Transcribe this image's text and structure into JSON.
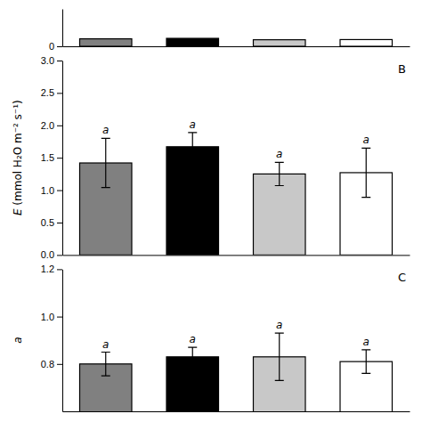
{
  "chart_data": [
    {
      "type": "bar",
      "categories": [
        null,
        null,
        null,
        null
      ],
      "values": [
        8.0,
        8.5,
        7.0,
        7.2
      ],
      "colors": [
        "#808080",
        "#000000",
        "#c8c8c8",
        "#ffffff"
      ],
      "ylim": [
        0,
        40
      ],
      "yticks": [
        0
      ],
      "tick_labels": "y"
    },
    {
      "type": "bar",
      "title": "B",
      "ylabel": "E (mmol H₂O m⁻² s⁻¹)",
      "categories": [
        null,
        null,
        null,
        null
      ],
      "values": [
        1.42,
        1.67,
        1.25,
        1.27
      ],
      "errors": [
        0.38,
        0.22,
        0.18,
        0.38
      ],
      "annotations": [
        "a",
        "a",
        "a",
        "a"
      ],
      "colors": [
        "#808080",
        "#000000",
        "#c8c8c8",
        "#ffffff"
      ],
      "ylim": [
        0.0,
        3.0
      ],
      "yticks": [
        {
          "value": 0.0,
          "label": "0.0"
        },
        0.5,
        {
          "value": 1.0,
          "label": "1.0"
        },
        1.5,
        {
          "value": 2.0,
          "label": "2.0"
        },
        2.5,
        {
          "value": 3.0,
          "label": "3.0"
        }
      ],
      "tick_labels": "y"
    },
    {
      "type": "bar",
      "title": "C",
      "ylabel": "a",
      "categories": [
        null,
        null,
        null,
        null
      ],
      "values": [
        0.8,
        0.83,
        0.83,
        0.81
      ],
      "errors": [
        0.05,
        0.04,
        0.1,
        0.05
      ],
      "annotations": [
        "a",
        "a",
        "a",
        "a"
      ],
      "colors": [
        "#808080",
        "#000000",
        "#c8c8c8",
        "#ffffff"
      ],
      "ylim": [
        0.6,
        1.2
      ],
      "yticks": [
        0.8,
        {
          "value": 1.0,
          "label": "1.0"
        },
        1.2
      ],
      "tick_labels": "y"
    }
  ]
}
